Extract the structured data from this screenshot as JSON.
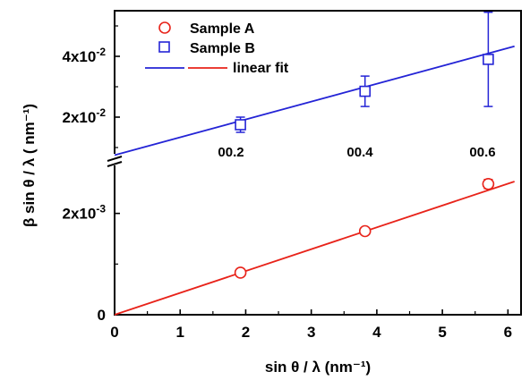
{
  "chart_data": {
    "type": "scatter",
    "title": "",
    "xlabel": "sin θ / λ (nm⁻¹)",
    "ylabel": "β sin θ / λ ( nm⁻¹)",
    "xlim": [
      0,
      6.2
    ],
    "xticks": [
      "0",
      "1",
      "2",
      "3",
      "4",
      "5",
      "6"
    ],
    "y_axis_break": true,
    "lower_panel": {
      "ylim": [
        0,
        0.003
      ],
      "yticks": [
        {
          "value": 0,
          "label": "0"
        },
        {
          "value": 0.002,
          "label": "2x10-3",
          "mantissa": "2x10",
          "exponent": "-3"
        }
      ]
    },
    "upper_panel": {
      "ylim": [
        0.005,
        0.055
      ],
      "yticks": [
        {
          "value": 0.02,
          "label": "2x10-2",
          "mantissa": "2x10",
          "exponent": "-2"
        },
        {
          "value": 0.04,
          "label": "4x10-2",
          "mantissa": "4x10",
          "exponent": "-2"
        }
      ]
    },
    "series": [
      {
        "name": "Sample A",
        "panel": "lower",
        "marker": "circle",
        "color": "#e8231a",
        "x": [
          1.92,
          3.82,
          5.7
        ],
        "y": [
          0.00083,
          0.00165,
          0.00258
        ],
        "yerr": [
          2e-05,
          3e-05,
          9e-05
        ]
      },
      {
        "name": "Sample B",
        "panel": "upper",
        "marker": "square",
        "color": "#2424d6",
        "x": [
          1.92,
          3.82,
          5.7
        ],
        "y": [
          0.0175,
          0.0285,
          0.039
        ],
        "yerr": [
          0.0025,
          0.005,
          0.0155
        ]
      }
    ],
    "fits": [
      {
        "panel": "upper",
        "color": "#2424d6",
        "x": [
          0,
          6.1
        ],
        "y": [
          0.0075,
          0.0433
        ]
      },
      {
        "panel": "lower",
        "color": "#e8231a",
        "x": [
          0,
          6.1
        ],
        "y": [
          0,
          0.00263
        ]
      }
    ],
    "legend": {
      "position": "top-left",
      "entries": [
        {
          "label": "Sample A",
          "marker": "circle",
          "color": "#e8231a"
        },
        {
          "label": "Sample B",
          "marker": "square",
          "color": "#2424d6"
        },
        {
          "label": "linear fit",
          "marker": "line",
          "colors": [
            "#2424d6",
            "#e8231a"
          ]
        }
      ]
    },
    "annotations": [
      "00.2",
      "00.4",
      "00.6"
    ],
    "grid": false
  }
}
